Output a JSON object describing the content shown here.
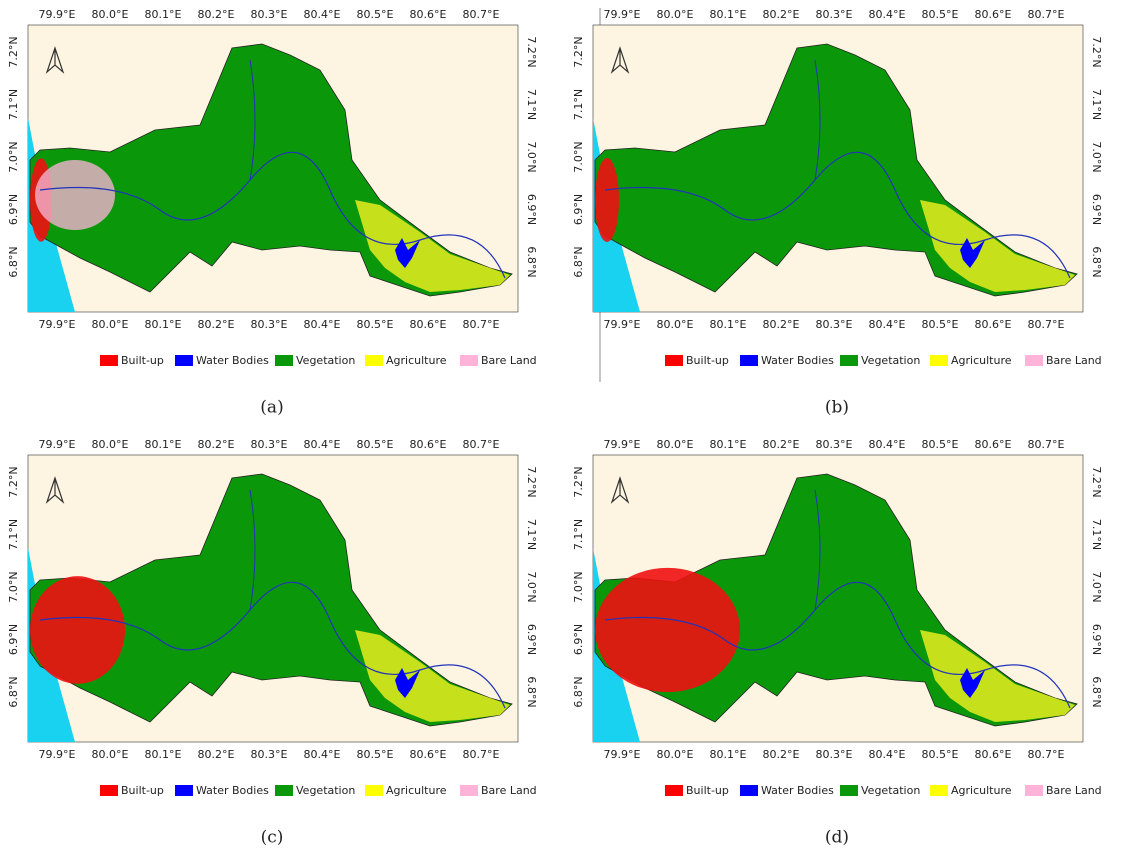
{
  "lon_ticks": [
    "79.9°E",
    "80.0°E",
    "80.1°E",
    "80.2°E",
    "80.3°E",
    "80.4°E",
    "80.5°E",
    "80.6°E",
    "80.7°E"
  ],
  "lat_ticks": [
    "7.2°N",
    "7.1°N",
    "7.0°N",
    "6.9°N",
    "6.8°N"
  ],
  "legend": [
    {
      "name": "Built-up",
      "color": "#ff0000"
    },
    {
      "name": "Water Bodies",
      "color": "#0000ff"
    },
    {
      "name": "Vegetation",
      "color": "#0a980a"
    },
    {
      "name": "Agriculture",
      "color": "#ffff00"
    },
    {
      "name": "Bare Land",
      "color": "#ffb3d9"
    }
  ],
  "panels": [
    {
      "label": "(a)"
    },
    {
      "label": "(b)"
    },
    {
      "label": "(c)"
    },
    {
      "label": "(d)"
    }
  ]
}
